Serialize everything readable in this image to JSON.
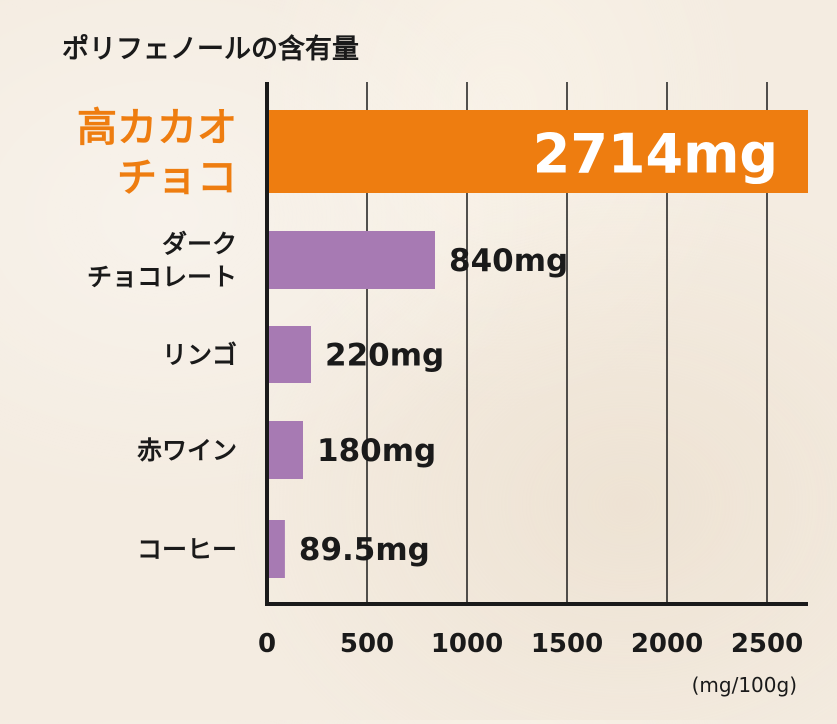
{
  "chart_data": {
    "type": "bar",
    "orientation": "horizontal",
    "title": "ポリフェノールの含有量",
    "unit_label": "(mg/100g)",
    "categories": [
      [
        "高カカオ",
        "チョコ"
      ],
      [
        "ダーク",
        "チョコレート"
      ],
      [
        "リンゴ"
      ],
      [
        "赤ワイン"
      ],
      [
        "コーヒー"
      ]
    ],
    "values": [
      2714,
      840,
      220,
      180,
      89.5
    ],
    "value_labels": [
      "2714mg",
      "840mg",
      "220mg",
      "180mg",
      "89.5mg"
    ],
    "xlim": [
      0,
      2750
    ],
    "x_ticks": [
      0,
      500,
      1000,
      1500,
      2000,
      2500
    ],
    "grid": "vertical",
    "colors": {
      "highlight": "#ee7d10",
      "bar": "#a77ab3",
      "axis": "#1a1a1a",
      "highlight_label": "#ffffff",
      "highlight_category": "#ee7d10",
      "text": "#1a1a1a"
    }
  }
}
